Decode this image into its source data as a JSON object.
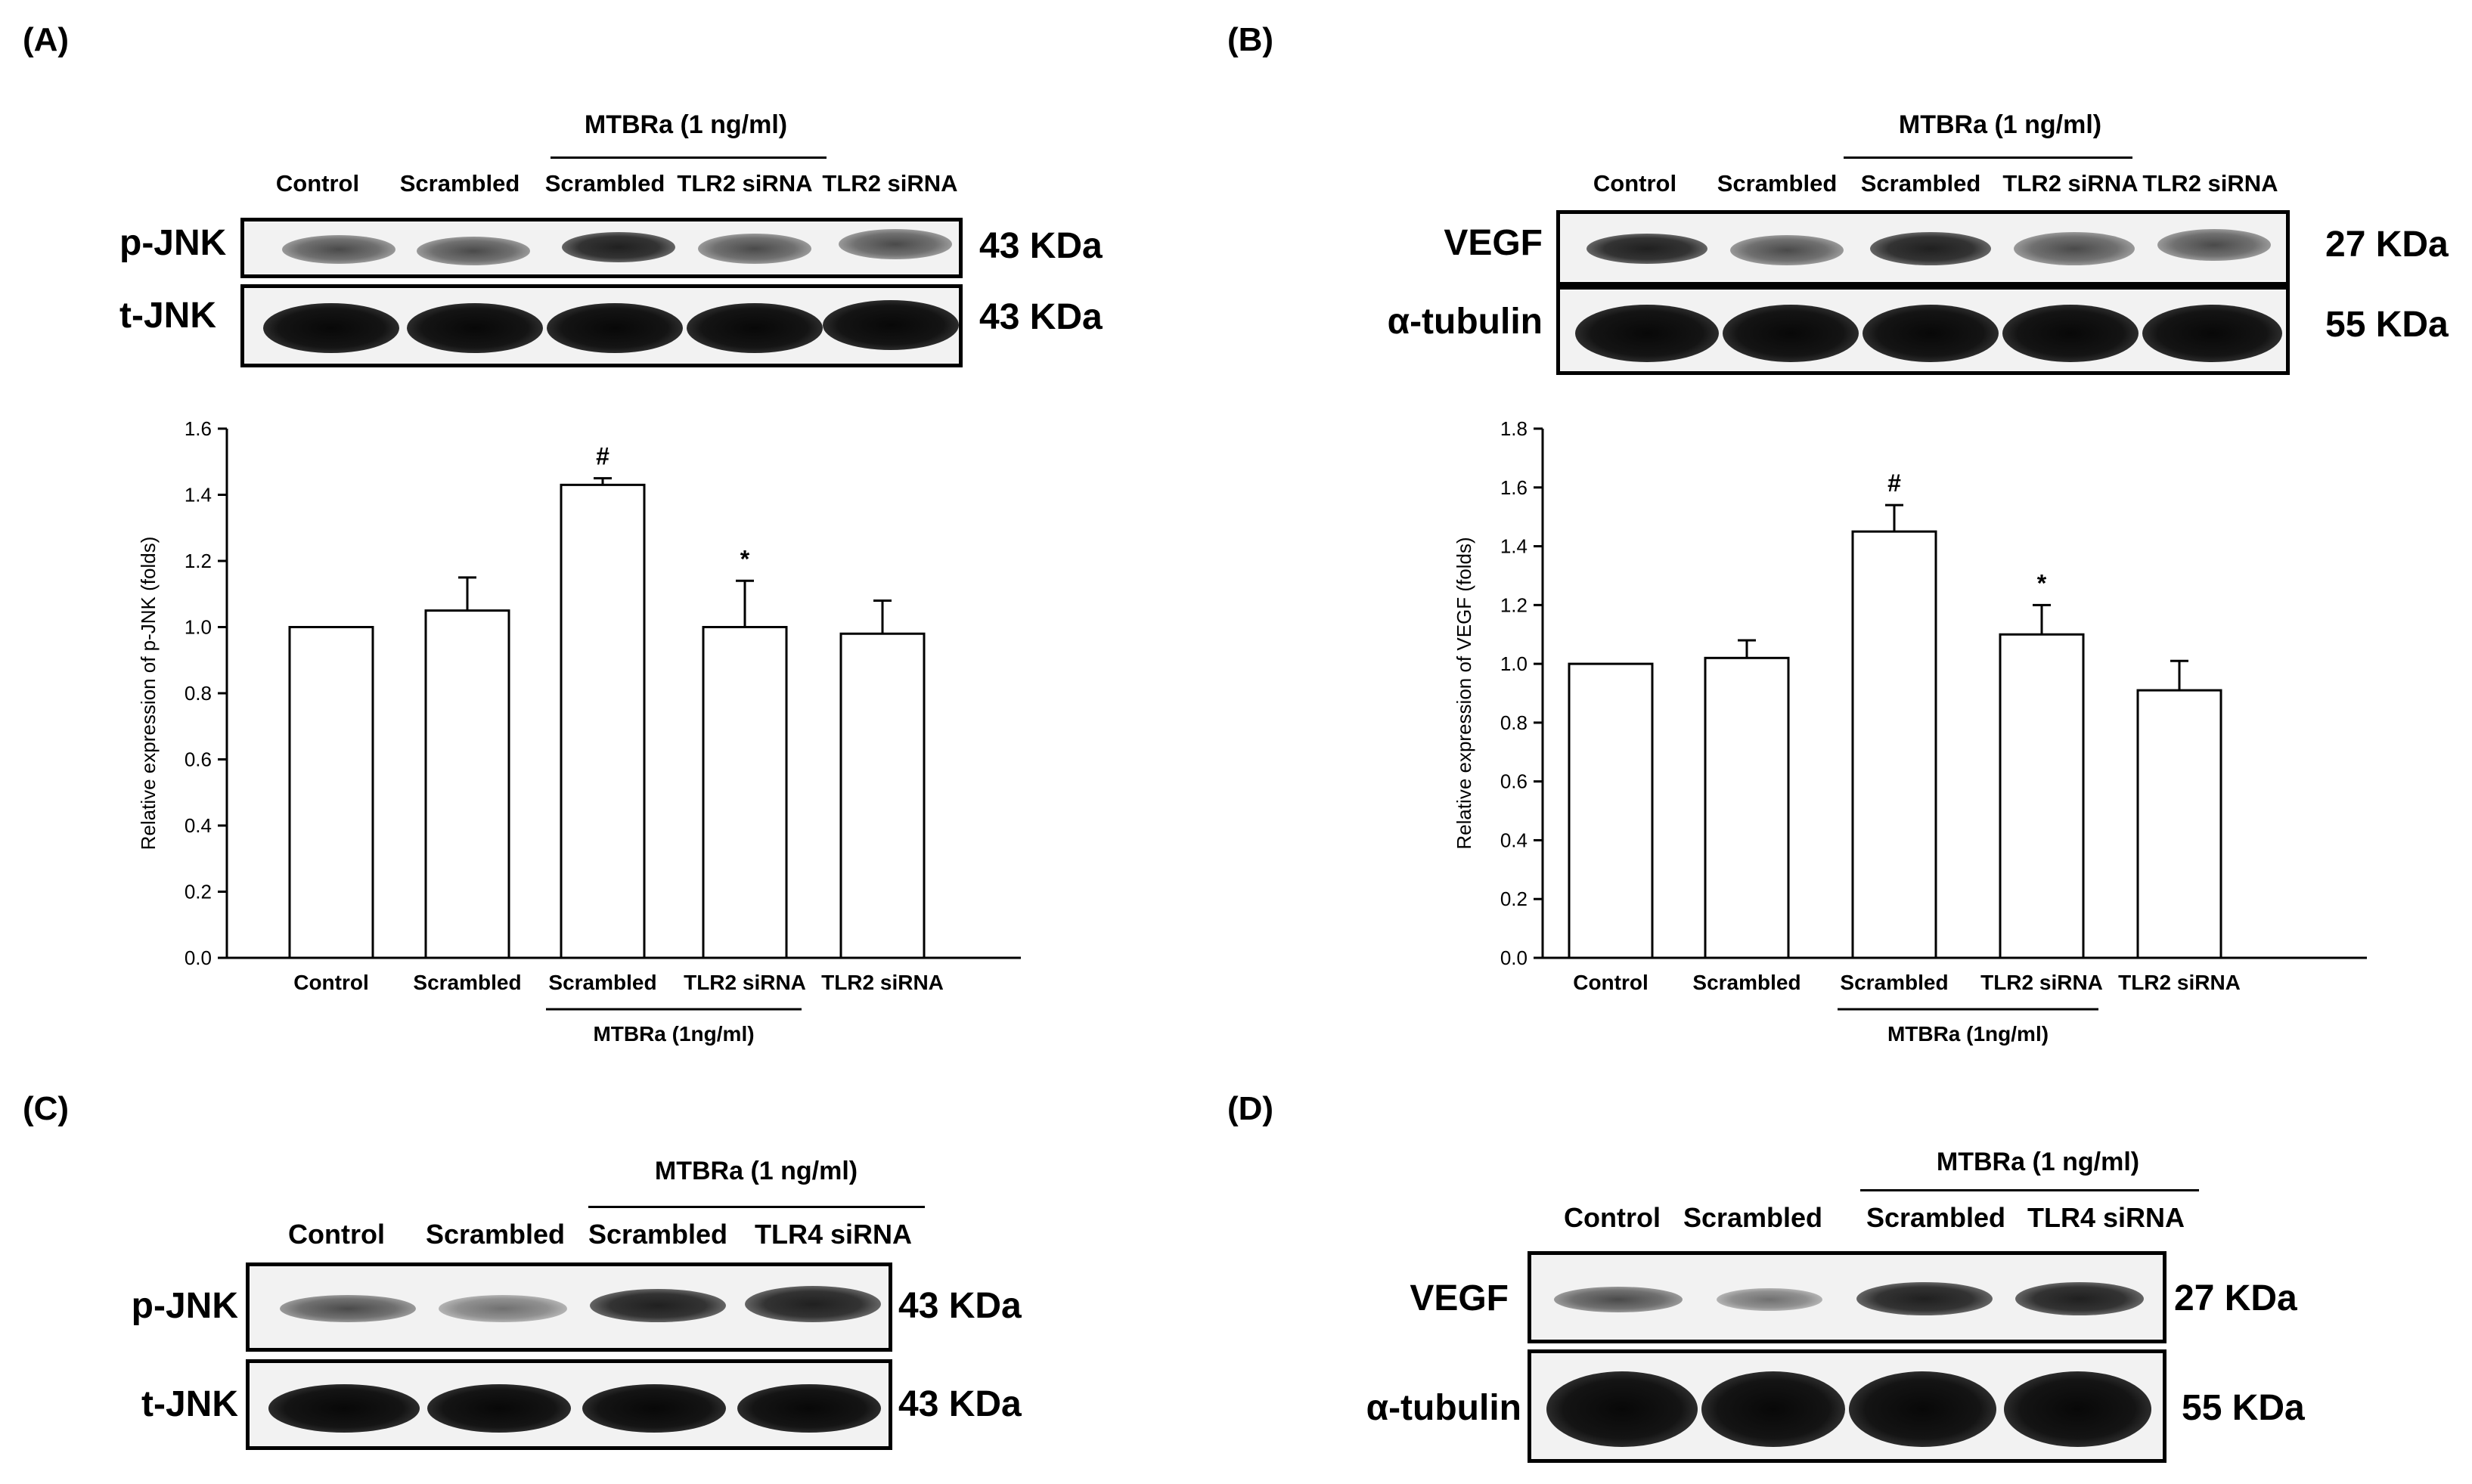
{
  "panels": {
    "A": {
      "letter": "(A)",
      "group_label": "MTBRa (1 ng/ml)",
      "lanes": [
        "Control",
        "Scrambled",
        "Scrambled",
        "TLR2 siRNA",
        "TLR2 siRNA"
      ],
      "blots": [
        {
          "label": "p-JNK",
          "kda": "43 KDa"
        },
        {
          "label": "t-JNK",
          "kda": "43 KDa"
        }
      ]
    },
    "B": {
      "letter": "(B)",
      "group_label": "MTBRa (1 ng/ml)",
      "lanes": [
        "Control",
        "Scrambled",
        "Scrambled",
        "TLR2 siRNA",
        "TLR2 siRNA"
      ],
      "blots": [
        {
          "label": "VEGF",
          "kda": "27 KDa"
        },
        {
          "label": "α-tubulin",
          "kda": "55 KDa"
        }
      ]
    },
    "C": {
      "letter": "(C)",
      "group_label": "MTBRa (1 ng/ml)",
      "lanes": [
        "Control",
        "Scrambled",
        "Scrambled",
        "TLR4 siRNA"
      ],
      "blots": [
        {
          "label": "p-JNK",
          "kda": "43 KDa"
        },
        {
          "label": "t-JNK",
          "kda": "43 KDa"
        }
      ]
    },
    "D": {
      "letter": "(D)",
      "group_label": "MTBRa (1 ng/ml)",
      "lanes": [
        "Control",
        "Scrambled",
        "Scrambled",
        "TLR4 siRNA"
      ],
      "blots": [
        {
          "label": "VEGF",
          "kda": "27 KDa"
        },
        {
          "label": "α-tubulin",
          "kda": "55 KDa"
        }
      ]
    }
  },
  "chart_data": [
    {
      "type": "bar",
      "panel": "A",
      "categories": [
        "Control",
        "Scrambled",
        "Scrambled",
        "TLR2 siRNA",
        "TLR2 siRNA"
      ],
      "values": [
        1.0,
        1.05,
        1.43,
        1.0,
        0.98
      ],
      "errors": [
        0.0,
        0.1,
        0.02,
        0.14,
        0.1
      ],
      "annotations": [
        "",
        "",
        "#",
        "*",
        ""
      ],
      "ylabel": "Relative expression of p-JNK (folds)",
      "ylim": [
        0,
        1.6
      ],
      "yticks": [
        "0.0",
        "0.2",
        "0.4",
        "0.6",
        "0.8",
        "1.0",
        "1.2",
        "1.4",
        "1.6"
      ],
      "group_label": "MTBRa (1ng/ml)",
      "grid": false
    },
    {
      "type": "bar",
      "panel": "B",
      "categories": [
        "Control",
        "Scrambled",
        "Scrambled",
        "TLR2 siRNA",
        "TLR2 siRNA"
      ],
      "values": [
        1.0,
        1.02,
        1.45,
        1.1,
        0.91
      ],
      "errors": [
        0.0,
        0.06,
        0.09,
        0.1,
        0.1
      ],
      "annotations": [
        "",
        "",
        "#",
        "*",
        ""
      ],
      "ylabel": "Relative expression of VEGF (folds)",
      "ylim": [
        0,
        1.8
      ],
      "yticks": [
        "0.0",
        "0.2",
        "0.4",
        "0.6",
        "0.8",
        "1.0",
        "1.2",
        "1.4",
        "1.6",
        "1.8"
      ],
      "group_label": "MTBRa (1ng/ml)",
      "grid": false
    }
  ]
}
